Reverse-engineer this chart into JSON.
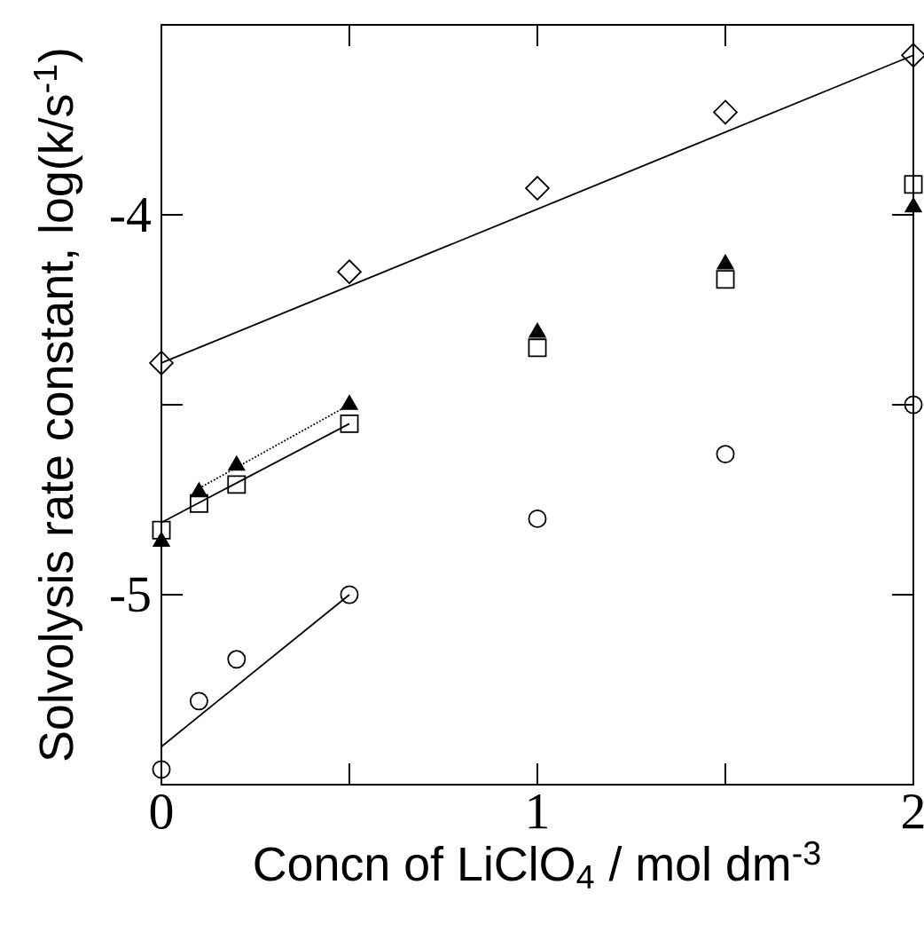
{
  "chart_data": {
    "type": "scatter",
    "xlabel": "Concn of LiClO$_{4}$ / mol dm$^{-3}$",
    "ylabel": "Solvolysis rate constant, log(k/s$^{-1}$)",
    "xlim": [
      0,
      2
    ],
    "ylim": [
      -5.5,
      -3.5
    ],
    "xticks": [
      0,
      {
        "value": 0.5,
        "label": null
      },
      1,
      {
        "value": 1.5,
        "label": null
      },
      2
    ],
    "yticks": [
      -5,
      {
        "value": -4.5,
        "label": null
      },
      -4
    ],
    "grid": false,
    "series": [
      {
        "marker": "diamond",
        "color": "#000000",
        "x": [
          0,
          0.5,
          1,
          1.5,
          2
        ],
        "values": [
          -4.39,
          -4.15,
          -3.93,
          -3.73,
          -3.58
        ]
      },
      {
        "marker": "triangle",
        "color": "#000000",
        "x": [
          0,
          0.1,
          0.2,
          0.5,
          1,
          1.5,
          2
        ],
        "values": [
          -4.86,
          -4.73,
          -4.66,
          -4.5,
          -4.31,
          -4.13,
          -3.98
        ]
      },
      {
        "marker": "square",
        "color": "#000000",
        "x": [
          0,
          0.1,
          0.2,
          0.5,
          1,
          1.5,
          2
        ],
        "values": [
          -4.83,
          -4.76,
          -4.71,
          -4.55,
          -4.35,
          -4.17,
          -3.92
        ]
      },
      {
        "marker": "circle",
        "color": "#000000",
        "x": [
          0,
          0.1,
          0.2,
          0.5,
          1,
          1.5,
          2
        ],
        "values": [
          -5.46,
          -5.28,
          -5.17,
          -5.0,
          -4.8,
          -4.63,
          -4.5
        ]
      },
      {
        "type": "line",
        "line_style": "solid",
        "color": "#000000",
        "x": [
          0,
          2
        ],
        "values": [
          -4.39,
          -3.58
        ]
      },
      {
        "type": "line",
        "line_style": "dotted",
        "color": "#000000",
        "x": [
          0.1,
          0.5
        ],
        "values": [
          -4.72,
          -4.5
        ]
      },
      {
        "type": "line",
        "line_style": "solid",
        "color": "#000000",
        "x": [
          0,
          0.5
        ],
        "values": [
          -4.81,
          -4.55
        ]
      },
      {
        "type": "line",
        "line_style": "solid",
        "color": "#000000",
        "x": [
          0,
          0.5
        ],
        "values": [
          -5.4,
          -5.0
        ]
      }
    ]
  }
}
